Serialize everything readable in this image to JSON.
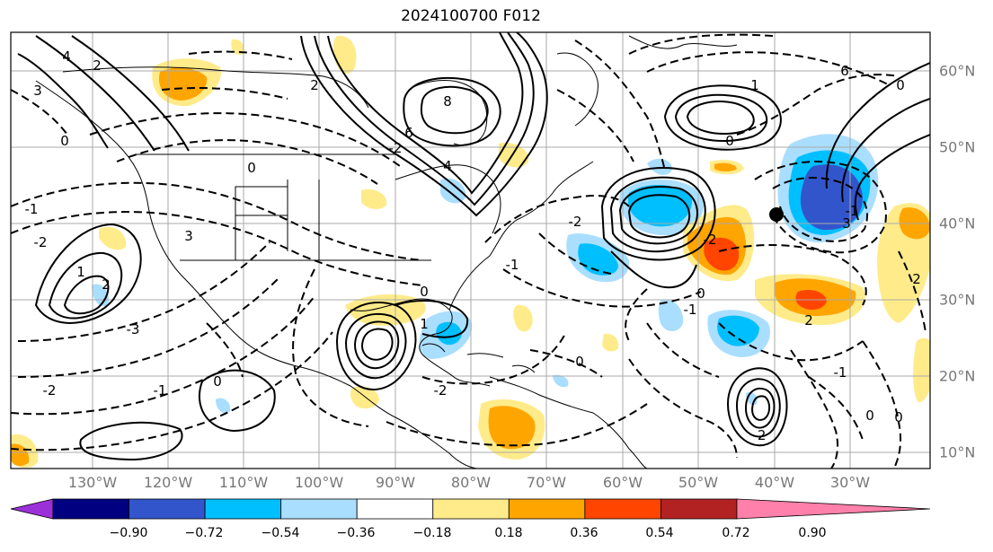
{
  "title": "2024100700 F012",
  "longitude_labels": [
    "130°W",
    "120°W",
    "110°W",
    "100°W",
    "90°W",
    "80°W",
    "70°W",
    "60°W",
    "50°W",
    "40°W",
    "30°W"
  ],
  "latitude_labels": [
    "60°N",
    "50°N",
    "40°N",
    "30°N",
    "20°N",
    "10°N"
  ],
  "colorbar": {
    "ticks": [
      "−0.90",
      "−0.72",
      "−0.54",
      "−0.36",
      "−0.18",
      "0.18",
      "0.36",
      "0.54",
      "0.72",
      "0.90"
    ],
    "colors": [
      "#9b30d9",
      "#000080",
      "#3355cc",
      "#00bfff",
      "#aadeff",
      "#ffffff",
      "#ffeb8a",
      "#ffa500",
      "#ff4500",
      "#b22222",
      "#ff80aa"
    ]
  },
  "colors": {
    "light_blue": "#aadeff",
    "blue": "#00bfff",
    "mid_blue": "#3355cc",
    "yellow": "#ffeb8a",
    "orange": "#ffa500",
    "red_orange": "#ff4500",
    "grid": "#aaaaaa",
    "contour": "#000000"
  },
  "contour_labels": [
    {
      "text": "4"
    },
    {
      "text": "2"
    },
    {
      "text": "3"
    },
    {
      "text": "0"
    },
    {
      "text": "8"
    },
    {
      "text": "6"
    },
    {
      "text": "4"
    },
    {
      "text": "-2"
    },
    {
      "text": "2"
    },
    {
      "text": "0"
    },
    {
      "text": "-1"
    },
    {
      "text": "1"
    },
    {
      "text": "-2"
    },
    {
      "text": "-3"
    },
    {
      "text": "3"
    },
    {
      "text": "-1"
    },
    {
      "text": "1"
    },
    {
      "text": "-2"
    },
    {
      "text": "0"
    },
    {
      "text": "2"
    },
    {
      "text": "-2"
    },
    {
      "text": "0"
    },
    {
      "text": "6"
    },
    {
      "text": "1"
    },
    {
      "text": "0"
    },
    {
      "text": "-2"
    },
    {
      "text": "-1"
    },
    {
      "text": "-2"
    },
    {
      "text": "0"
    },
    {
      "text": "0"
    },
    {
      "text": "-1"
    },
    {
      "text": "2"
    },
    {
      "text": "3"
    },
    {
      "text": "-2"
    },
    {
      "text": "-1"
    },
    {
      "text": "0"
    },
    {
      "text": "0"
    },
    {
      "text": "0"
    },
    {
      "text": "-1"
    },
    {
      "text": "2"
    }
  ]
}
